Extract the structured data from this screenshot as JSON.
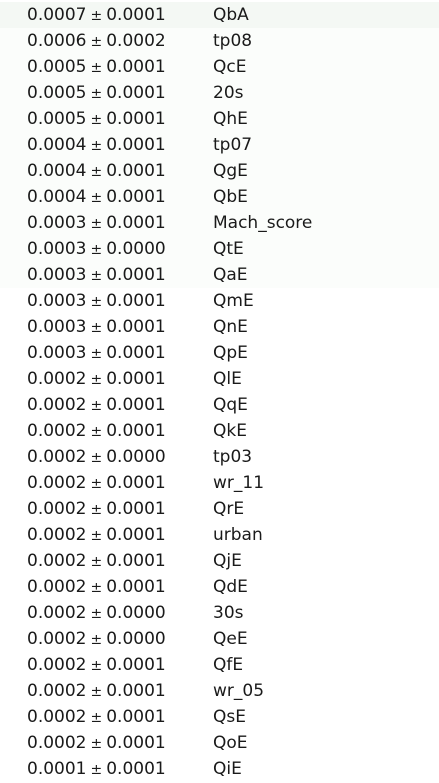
{
  "colors": {
    "background": "#ffffff",
    "text": "#1a1a1a",
    "row_tint": "#f4f8f4"
  },
  "pm_symbol": "±",
  "rows": [
    {
      "weight": "0.0007",
      "std": "0.0001",
      "feature": "QbA"
    },
    {
      "weight": "0.0006",
      "std": "0.0002",
      "feature": "tp08"
    },
    {
      "weight": "0.0005",
      "std": "0.0001",
      "feature": "QcE"
    },
    {
      "weight": "0.0005",
      "std": "0.0001",
      "feature": "20s"
    },
    {
      "weight": "0.0005",
      "std": "0.0001",
      "feature": "QhE"
    },
    {
      "weight": "0.0004",
      "std": "0.0001",
      "feature": "tp07"
    },
    {
      "weight": "0.0004",
      "std": "0.0001",
      "feature": "QgE"
    },
    {
      "weight": "0.0004",
      "std": "0.0001",
      "feature": "QbE"
    },
    {
      "weight": "0.0003",
      "std": "0.0001",
      "feature": "Mach_score"
    },
    {
      "weight": "0.0003",
      "std": "0.0000",
      "feature": "QtE"
    },
    {
      "weight": "0.0003",
      "std": "0.0001",
      "feature": "QaE"
    },
    {
      "weight": "0.0003",
      "std": "0.0001",
      "feature": "QmE"
    },
    {
      "weight": "0.0003",
      "std": "0.0001",
      "feature": "QnE"
    },
    {
      "weight": "0.0003",
      "std": "0.0001",
      "feature": "QpE"
    },
    {
      "weight": "0.0002",
      "std": "0.0001",
      "feature": "QlE"
    },
    {
      "weight": "0.0002",
      "std": "0.0001",
      "feature": "QqE"
    },
    {
      "weight": "0.0002",
      "std": "0.0001",
      "feature": "QkE"
    },
    {
      "weight": "0.0002",
      "std": "0.0000",
      "feature": "tp03"
    },
    {
      "weight": "0.0002",
      "std": "0.0001",
      "feature": "wr_11"
    },
    {
      "weight": "0.0002",
      "std": "0.0001",
      "feature": "QrE"
    },
    {
      "weight": "0.0002",
      "std": "0.0001",
      "feature": "urban"
    },
    {
      "weight": "0.0002",
      "std": "0.0001",
      "feature": "QjE"
    },
    {
      "weight": "0.0002",
      "std": "0.0001",
      "feature": "QdE"
    },
    {
      "weight": "0.0002",
      "std": "0.0000",
      "feature": "30s"
    },
    {
      "weight": "0.0002",
      "std": "0.0000",
      "feature": "QeE"
    },
    {
      "weight": "0.0002",
      "std": "0.0001",
      "feature": "QfE"
    },
    {
      "weight": "0.0002",
      "std": "0.0001",
      "feature": "wr_05"
    },
    {
      "weight": "0.0002",
      "std": "0.0001",
      "feature": "QsE"
    },
    {
      "weight": "0.0002",
      "std": "0.0001",
      "feature": "QoE"
    },
    {
      "weight": "0.0001",
      "std": "0.0001",
      "feature": "QiE"
    }
  ]
}
